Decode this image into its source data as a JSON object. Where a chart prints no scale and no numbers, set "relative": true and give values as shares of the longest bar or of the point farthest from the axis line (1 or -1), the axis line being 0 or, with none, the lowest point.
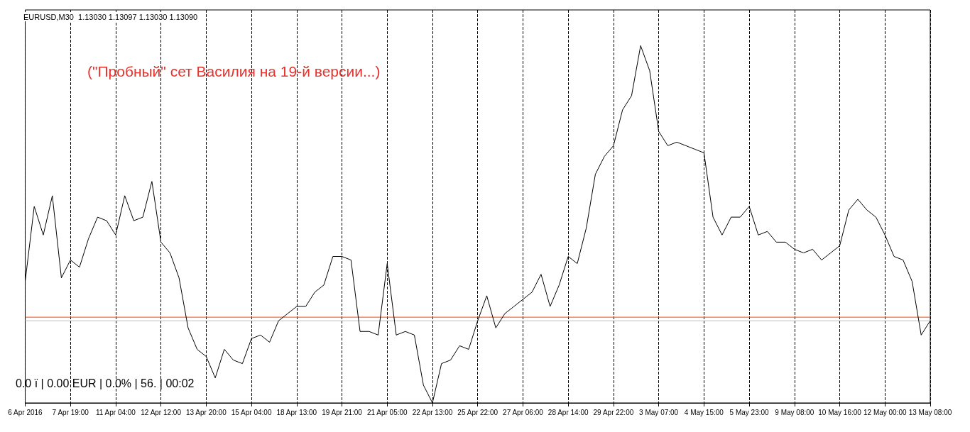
{
  "chart_data": {
    "type": "line",
    "title": "EURUSD,M30  1.13030 1.13097 1.13030 1.13090",
    "relative": true,
    "grid": "x",
    "annotations": [
      "(\"Пробный\" сет Василия на 19-й версии...)",
      "0.0 ї | 0.00 EUR | 0.0% | 56. | 00:02"
    ],
    "categories": [
      "6 Apr 2016",
      null,
      null,
      null,
      null,
      "7 Apr 19:00",
      null,
      null,
      null,
      null,
      "11 Apr 04:00",
      null,
      null,
      null,
      null,
      "12 Apr 12:00",
      null,
      null,
      null,
      null,
      "13 Apr 20:00",
      null,
      null,
      null,
      null,
      "15 Apr 04:00",
      null,
      null,
      null,
      null,
      "18 Apr 13:00",
      null,
      null,
      null,
      null,
      "19 Apr 21:00",
      null,
      null,
      null,
      null,
      "21 Apr 05:00",
      null,
      null,
      null,
      null,
      "22 Apr 13:00",
      null,
      null,
      null,
      null,
      "25 Apr 22:00",
      null,
      null,
      null,
      null,
      "27 Apr 06:00",
      null,
      null,
      null,
      null,
      "28 Apr 14:00",
      null,
      null,
      null,
      null,
      "29 Apr 22:00",
      null,
      null,
      null,
      null,
      "3 May 07:00",
      null,
      null,
      null,
      null,
      "4 May 15:00",
      null,
      null,
      null,
      null,
      "5 May 23:00",
      null,
      null,
      null,
      null,
      "9 May 08:00",
      null,
      null,
      null,
      null,
      "10 May 16:00",
      null,
      null,
      null,
      null,
      "12 May 00:00",
      null,
      null,
      null,
      null,
      "13 May 08:00"
    ],
    "series": [
      {
        "color": "#000000",
        "values": [
          0.34,
          0.55,
          0.47,
          0.58,
          0.35,
          0.4,
          0.38,
          0.46,
          0.52,
          0.51,
          0.47,
          0.58,
          0.51,
          0.52,
          0.62,
          0.45,
          0.42,
          0.35,
          0.21,
          0.15,
          0.13,
          0.07,
          0.15,
          0.12,
          0.11,
          0.18,
          0.19,
          0.17,
          0.23,
          0.25,
          0.27,
          0.27,
          0.31,
          0.33,
          0.41,
          0.41,
          0.4,
          0.2,
          0.2,
          0.19,
          0.39,
          0.19,
          0.2,
          0.19,
          0.05,
          0,
          0.11,
          0.12,
          0.16,
          0.15,
          0.23,
          0.3,
          0.21,
          0.25,
          0.27,
          0.29,
          0.31,
          0.36,
          0.27,
          0.33,
          0.41,
          0.39,
          0.49,
          0.64,
          0.69,
          0.72,
          0.82,
          0.86,
          1,
          0.93,
          0.76,
          0.72,
          0.73,
          0.72,
          0.71,
          0.7,
          0.52,
          0.47,
          0.52,
          0.52,
          0.55,
          0.47,
          0.48,
          0.45,
          0.45,
          0.43,
          0.42,
          0.43,
          0.4,
          0.42,
          0.44,
          0.54,
          0.57,
          0.54,
          0.52,
          0.47,
          0.41,
          0.4,
          0.34,
          0.19,
          0.23
        ]
      }
    ],
    "ref_lines": [
      {
        "axis": "y",
        "value": 0.24,
        "color": "#ff4500"
      },
      {
        "axis": "y",
        "value": 0.23,
        "color": "#c0c0c0"
      }
    ]
  }
}
